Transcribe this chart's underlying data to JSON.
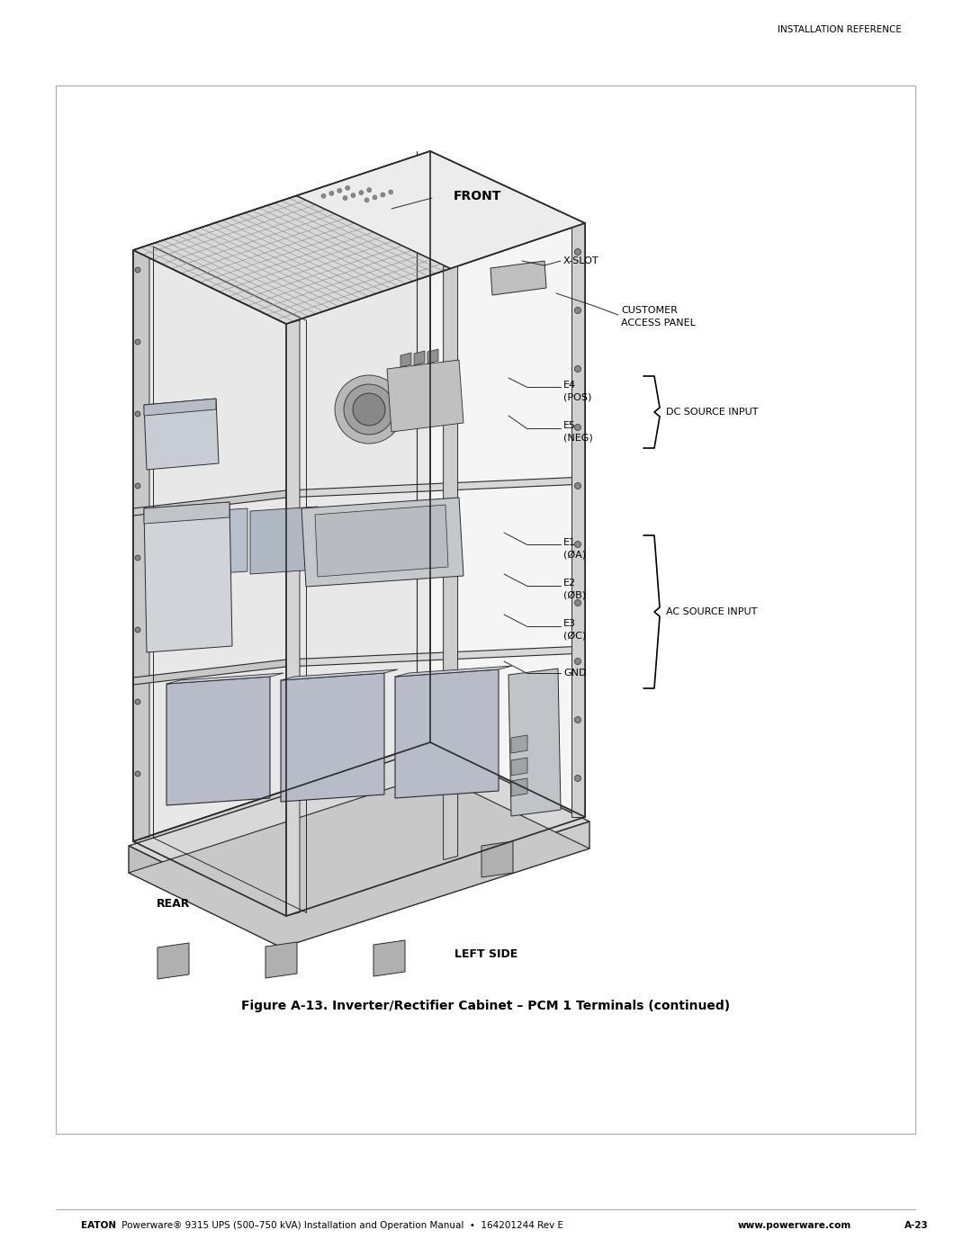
{
  "page_width": 10.8,
  "page_height": 13.97,
  "background_color": "#ffffff",
  "header_text": "INSTALLATION REFERENCE",
  "footer_left_bold": "EATON",
  "footer_left_normal": " Powerware® 9315 UPS (500–750 kVA) Installation and Operation Manual  •  164201244 Rev E ",
  "footer_left_url": "www.powerware.com",
  "footer_right": "A-23",
  "caption": "Figure A-13. Inverter/Rectifier Cabinet – PCM 1 Terminals (continued)",
  "label_front": "FRONT",
  "label_rear": "REAR",
  "label_left_side": "LEFT SIDE",
  "label_xslot": "X-SLOT",
  "label_customer_access": "CUSTOMER\nACCESS PANEL",
  "label_e4": "E4\n(POS)",
  "label_e5": "E5\n(NEG)",
  "label_dc_source": "DC SOURCE INPUT",
  "label_e1": "E1\n(ØA)",
  "label_e2": "E2\n(ØB)",
  "label_e3": "E3\n(ØC)",
  "label_gnd": "GND",
  "label_ac_source": "AC SOURCE INPUT",
  "text_color": "#000000",
  "draw_color": "#2a2a2a"
}
